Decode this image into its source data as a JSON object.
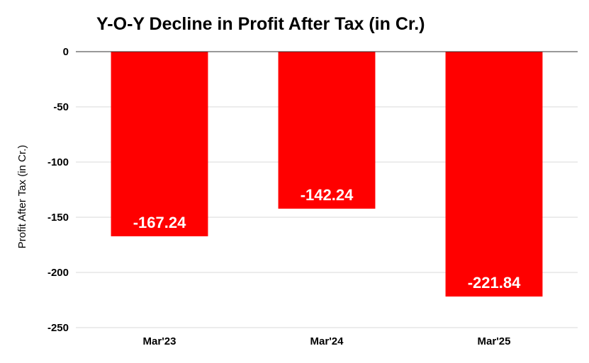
{
  "chart_data": {
    "type": "bar",
    "title": "Y-O-Y Decline in Profit After Tax (in Cr.)",
    "xlabel": "",
    "ylabel": "Profit After Tax (in Cr.)",
    "categories": [
      "Mar'23",
      "Mar'24",
      "Mar'25"
    ],
    "values": [
      -167.24,
      -142.24,
      -221.84
    ],
    "data_labels": [
      "-167.24",
      "-142.24",
      "-221.84"
    ],
    "ylim": [
      -250,
      0
    ],
    "yticks": [
      0,
      -50,
      -100,
      -150,
      -200,
      -250
    ],
    "ytick_labels": [
      "0",
      "-50",
      "-100",
      "-150",
      "-200",
      "-250"
    ],
    "grid": true,
    "legend": "none",
    "bar_color": "#ff0000"
  }
}
